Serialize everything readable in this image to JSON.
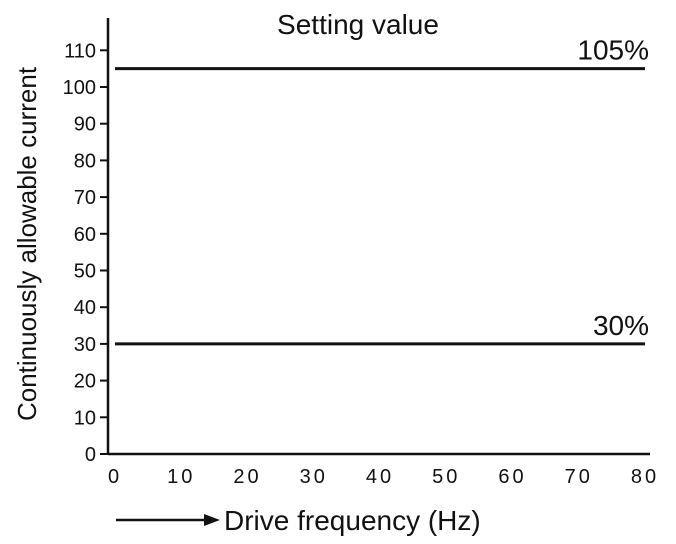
{
  "chart_data": {
    "type": "line",
    "title": "Setting value",
    "xlabel": "Drive frequency (Hz)",
    "ylabel": "Continuously allowable current",
    "x_ticks": [
      "0",
      "10",
      "20",
      "30",
      "40",
      "50",
      "60",
      "70",
      "80"
    ],
    "y_ticks": [
      "0",
      "10",
      "20",
      "30",
      "40",
      "50",
      "60",
      "70",
      "80",
      "90",
      "100",
      "110"
    ],
    "xlim": [
      0,
      80
    ],
    "ylim": [
      0,
      115
    ],
    "grid": false,
    "series": [
      {
        "label": "105%",
        "x": [
          0,
          80
        ],
        "y": [
          105,
          105
        ]
      },
      {
        "label": "30%",
        "x": [
          0,
          80
        ],
        "y": [
          30,
          30
        ]
      }
    ],
    "colors": {
      "line": "#111111",
      "text": "#111111"
    }
  }
}
